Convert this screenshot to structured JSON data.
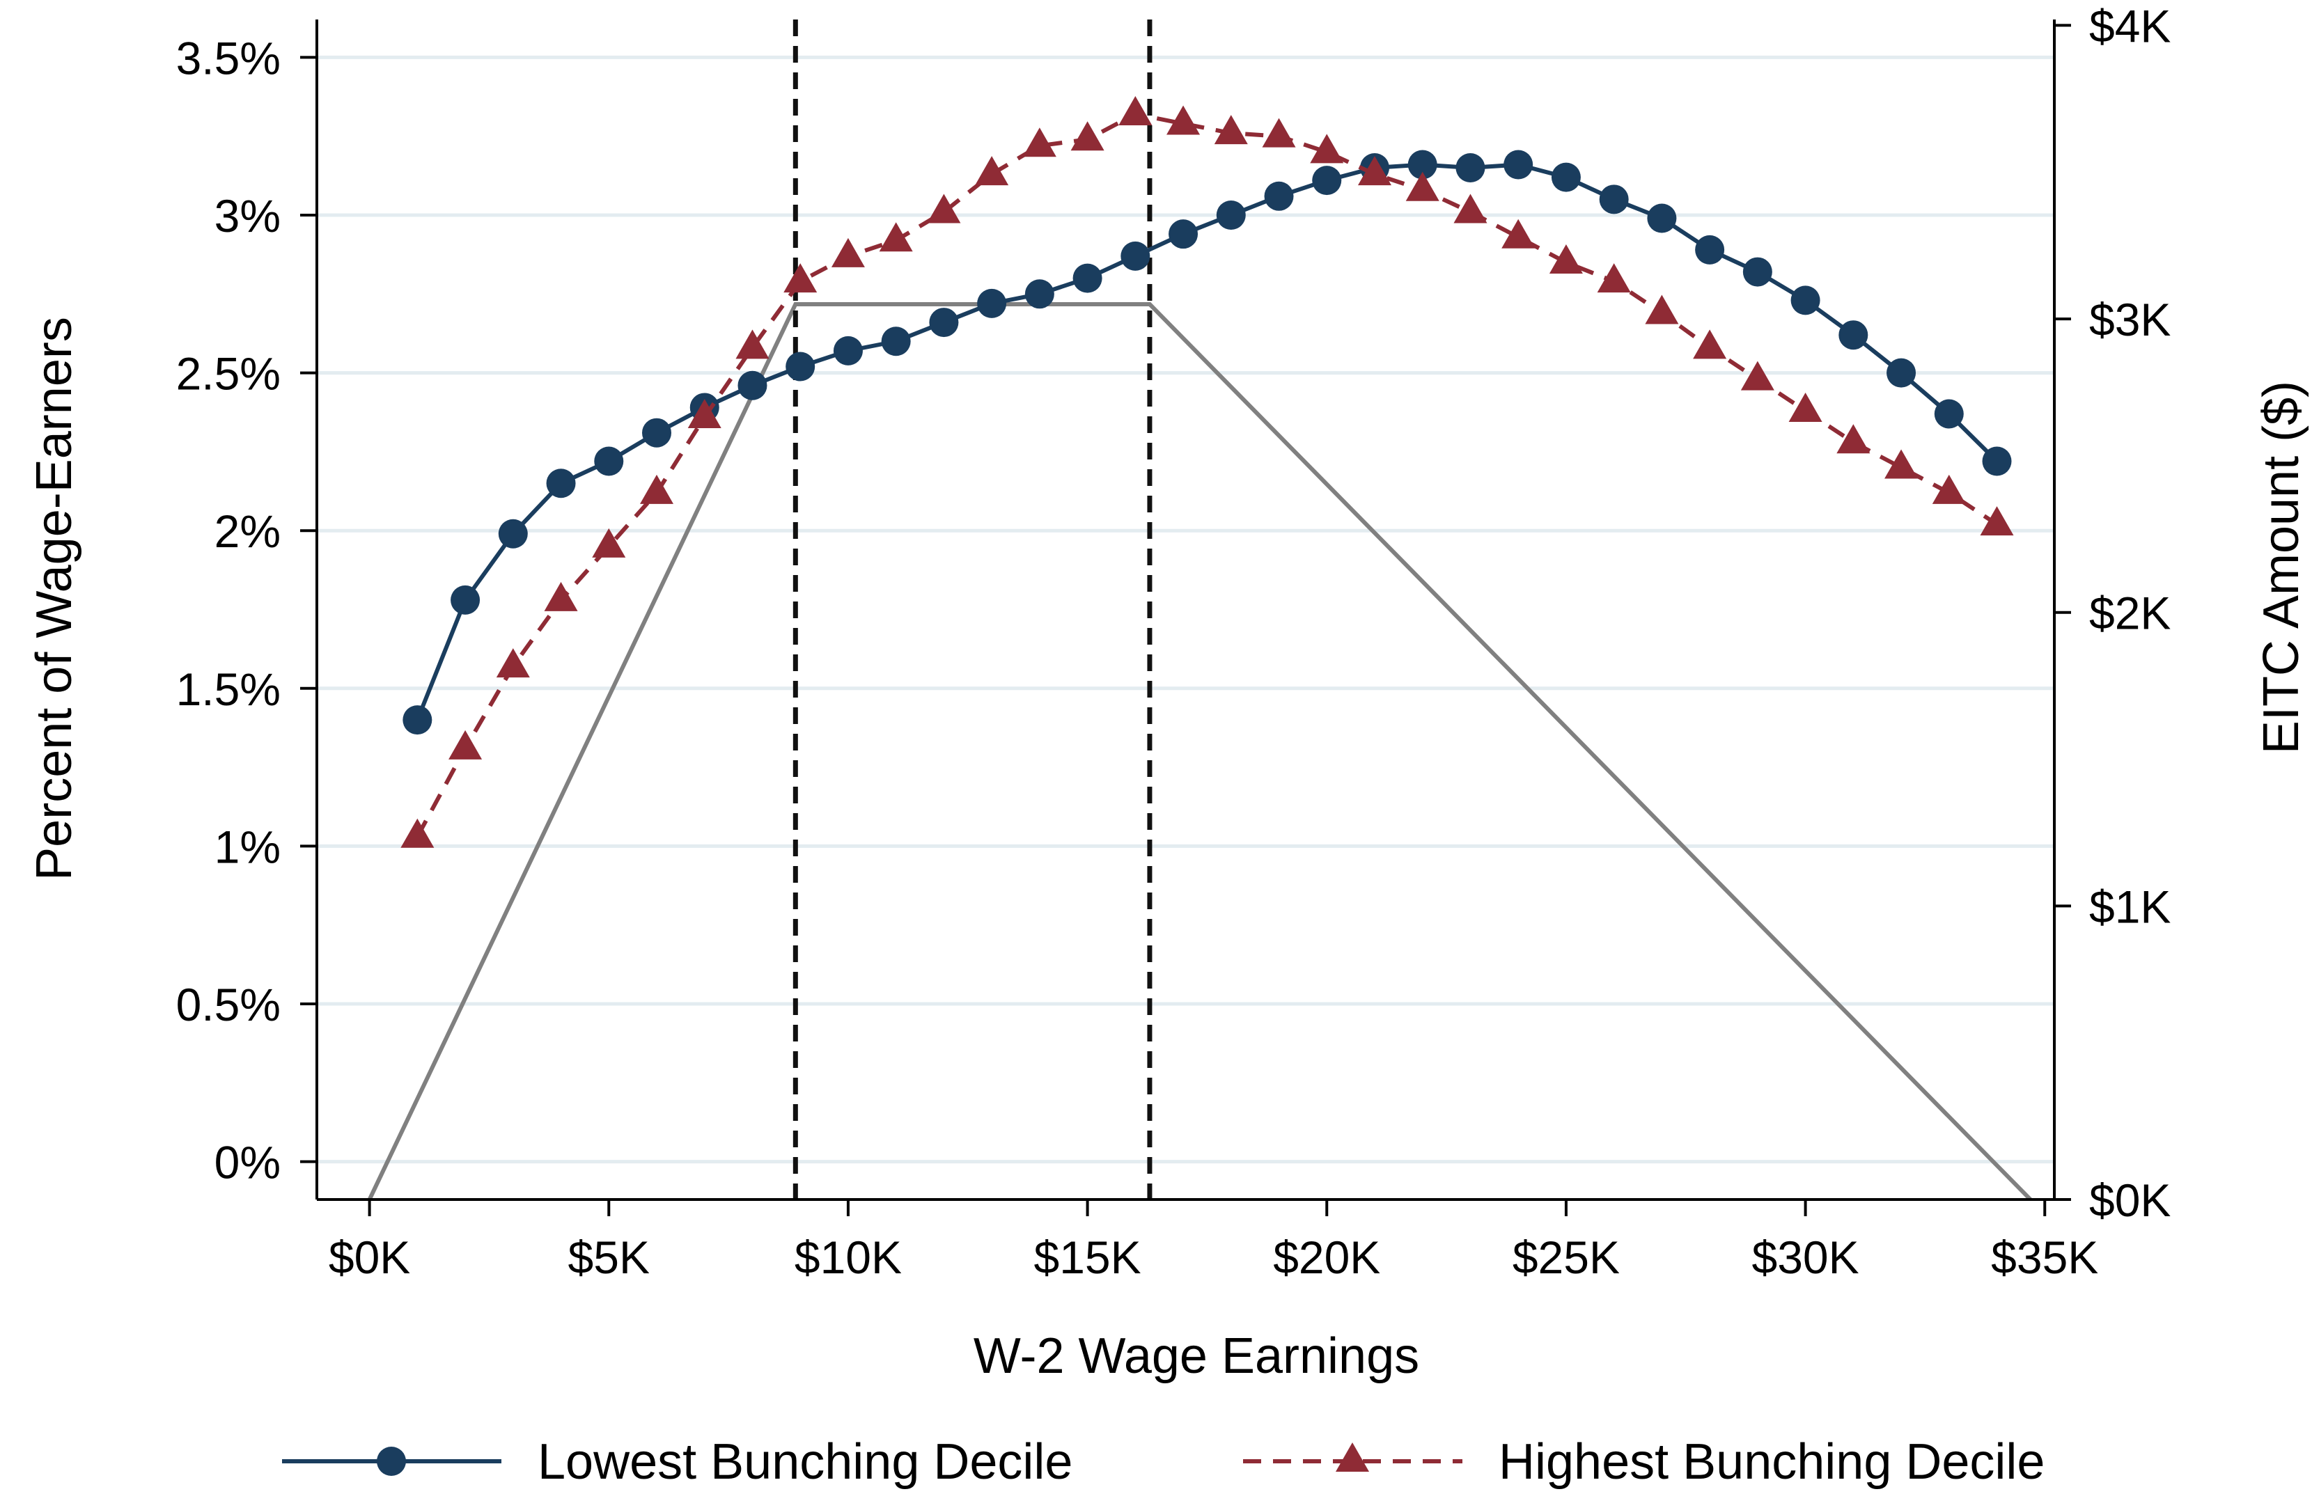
{
  "chart_data": {
    "type": "line",
    "xlabel": "W-2 Wage Earnings",
    "ylabel": "Percent of Wage-Earners",
    "y2label": "EITC Amount ($)",
    "xlim": [
      -1100,
      35200
    ],
    "ylim": [
      -0.12,
      3.62
    ],
    "y2lim": [
      -0.0001,
      4.02
    ],
    "grid": true,
    "x_ticks": [
      {
        "value": 0,
        "label": "$0K"
      },
      {
        "value": 5000,
        "label": "$5K"
      },
      {
        "value": 10000,
        "label": "$10K"
      },
      {
        "value": 15000,
        "label": "$15K"
      },
      {
        "value": 20000,
        "label": "$20K"
      },
      {
        "value": 25000,
        "label": "$25K"
      },
      {
        "value": 30000,
        "label": "$30K"
      },
      {
        "value": 35000,
        "label": "$35K"
      }
    ],
    "y_ticks": [
      {
        "value": 0,
        "label": "0%"
      },
      {
        "value": 0.5,
        "label": "0.5%"
      },
      {
        "value": 1,
        "label": "1%"
      },
      {
        "value": 1.5,
        "label": "1.5%"
      },
      {
        "value": 2,
        "label": "2%"
      },
      {
        "value": 2.5,
        "label": "2.5%"
      },
      {
        "value": 3,
        "label": "3%"
      },
      {
        "value": 3.5,
        "label": "3.5%"
      }
    ],
    "y2_ticks": [
      {
        "value": 0,
        "label": "$0K"
      },
      {
        "value": 1,
        "label": "$1K"
      },
      {
        "value": 2,
        "label": "$2K"
      },
      {
        "value": 3,
        "label": "$3K"
      },
      {
        "value": 4,
        "label": "$4K"
      }
    ],
    "x": [
      1000,
      2000,
      3000,
      4000,
      5000,
      6000,
      7000,
      8000,
      9000,
      10000,
      11000,
      12000,
      13000,
      14000,
      15000,
      16000,
      17000,
      18000,
      19000,
      20000,
      21000,
      22000,
      23000,
      24000,
      25000,
      26000,
      27000,
      28000,
      29000,
      30000,
      31000,
      32000,
      33000,
      34000
    ],
    "series": [
      {
        "name": "Lowest Bunching Decile",
        "color": "#1a3d5e",
        "marker": "circle",
        "line_style": "solid",
        "values": [
          1.4,
          1.78,
          1.99,
          2.15,
          2.22,
          2.31,
          2.39,
          2.46,
          2.52,
          2.57,
          2.6,
          2.66,
          2.72,
          2.75,
          2.8,
          2.87,
          2.94,
          3.0,
          3.06,
          3.11,
          3.15,
          3.16,
          3.15,
          3.16,
          3.12,
          3.05,
          2.99,
          2.89,
          2.82,
          2.73,
          2.62,
          2.5,
          2.37,
          2.22
        ]
      },
      {
        "name": "Highest Bunching Decile",
        "color": "#8f2b35",
        "marker": "triangle",
        "line_style": "dashed",
        "values": [
          1.03,
          1.31,
          1.57,
          1.78,
          1.95,
          2.12,
          2.36,
          2.58,
          2.79,
          2.87,
          2.92,
          3.01,
          3.13,
          3.22,
          3.24,
          3.32,
          3.29,
          3.26,
          3.25,
          3.2,
          3.13,
          3.08,
          3.01,
          2.93,
          2.85,
          2.79,
          2.69,
          2.58,
          2.48,
          2.38,
          2.28,
          2.2,
          2.12,
          2.02
        ]
      }
    ],
    "eitc_schedule": {
      "color": "#808080",
      "axis": "y2",
      "x": [
        0,
        8900,
        16300,
        34700
      ],
      "values": [
        0,
        3.05,
        3.05,
        0
      ]
    },
    "reference_lines": {
      "axis": "x",
      "style": "dashed",
      "color": "#111111",
      "values": [
        8900,
        16300
      ]
    },
    "legend": {
      "position": "bottom",
      "entries": [
        "Lowest Bunching Decile",
        "Highest Bunching Decile"
      ]
    }
  }
}
